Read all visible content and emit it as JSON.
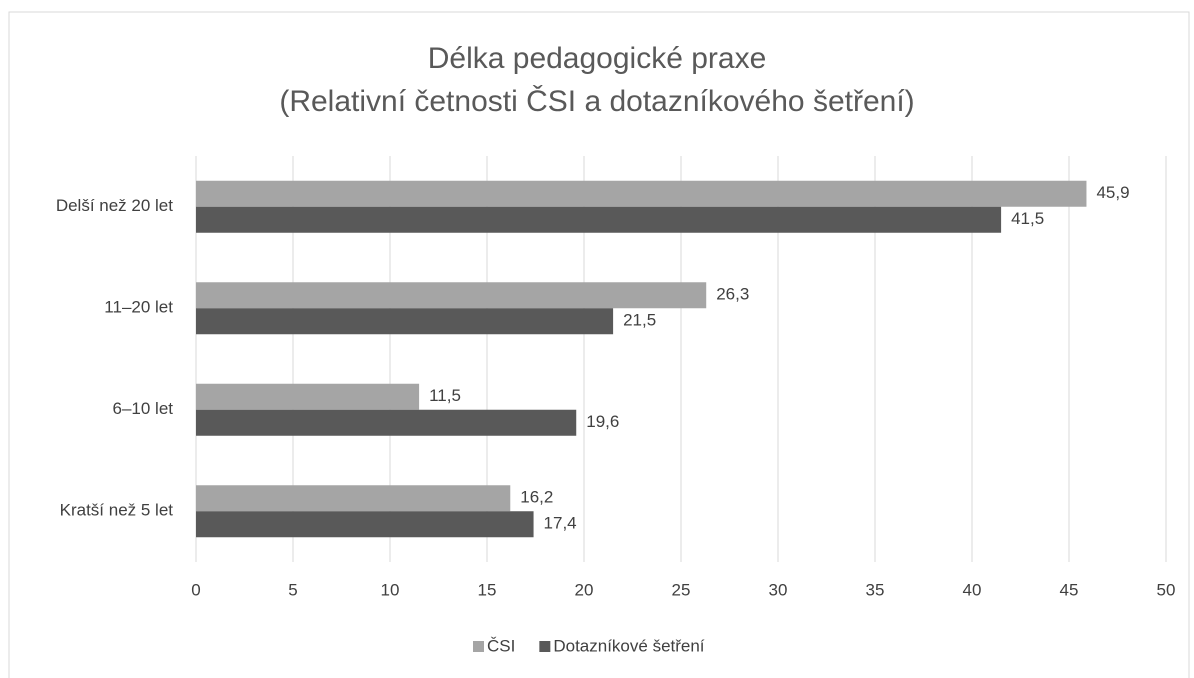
{
  "chart_data": {
    "type": "bar",
    "orientation": "horizontal",
    "title": "Délka pedagogické praxe",
    "subtitle": "(Relativní četnosti ČSI a dotazníkového šetření)",
    "categories": [
      "Delší než 20 let",
      "11–20 let",
      "6–10 let",
      "Kratší než 5 let"
    ],
    "series": [
      {
        "name": "ČSI",
        "color": "#a5a5a5",
        "values": [
          45.9,
          26.3,
          11.5,
          16.2
        ],
        "value_labels": [
          "45,9",
          "26,3",
          "11,5",
          "16,2"
        ]
      },
      {
        "name": "Dotazníkové šetření",
        "color": "#595959",
        "values": [
          41.5,
          21.5,
          19.6,
          17.4
        ],
        "value_labels": [
          "41,5",
          "21,5",
          "19,6",
          "17,4"
        ]
      }
    ],
    "xlim": [
      0,
      50
    ],
    "xticks": [
      0,
      5,
      10,
      15,
      20,
      25,
      30,
      35,
      40,
      45,
      50
    ],
    "grid": true,
    "legend": "bottom"
  }
}
